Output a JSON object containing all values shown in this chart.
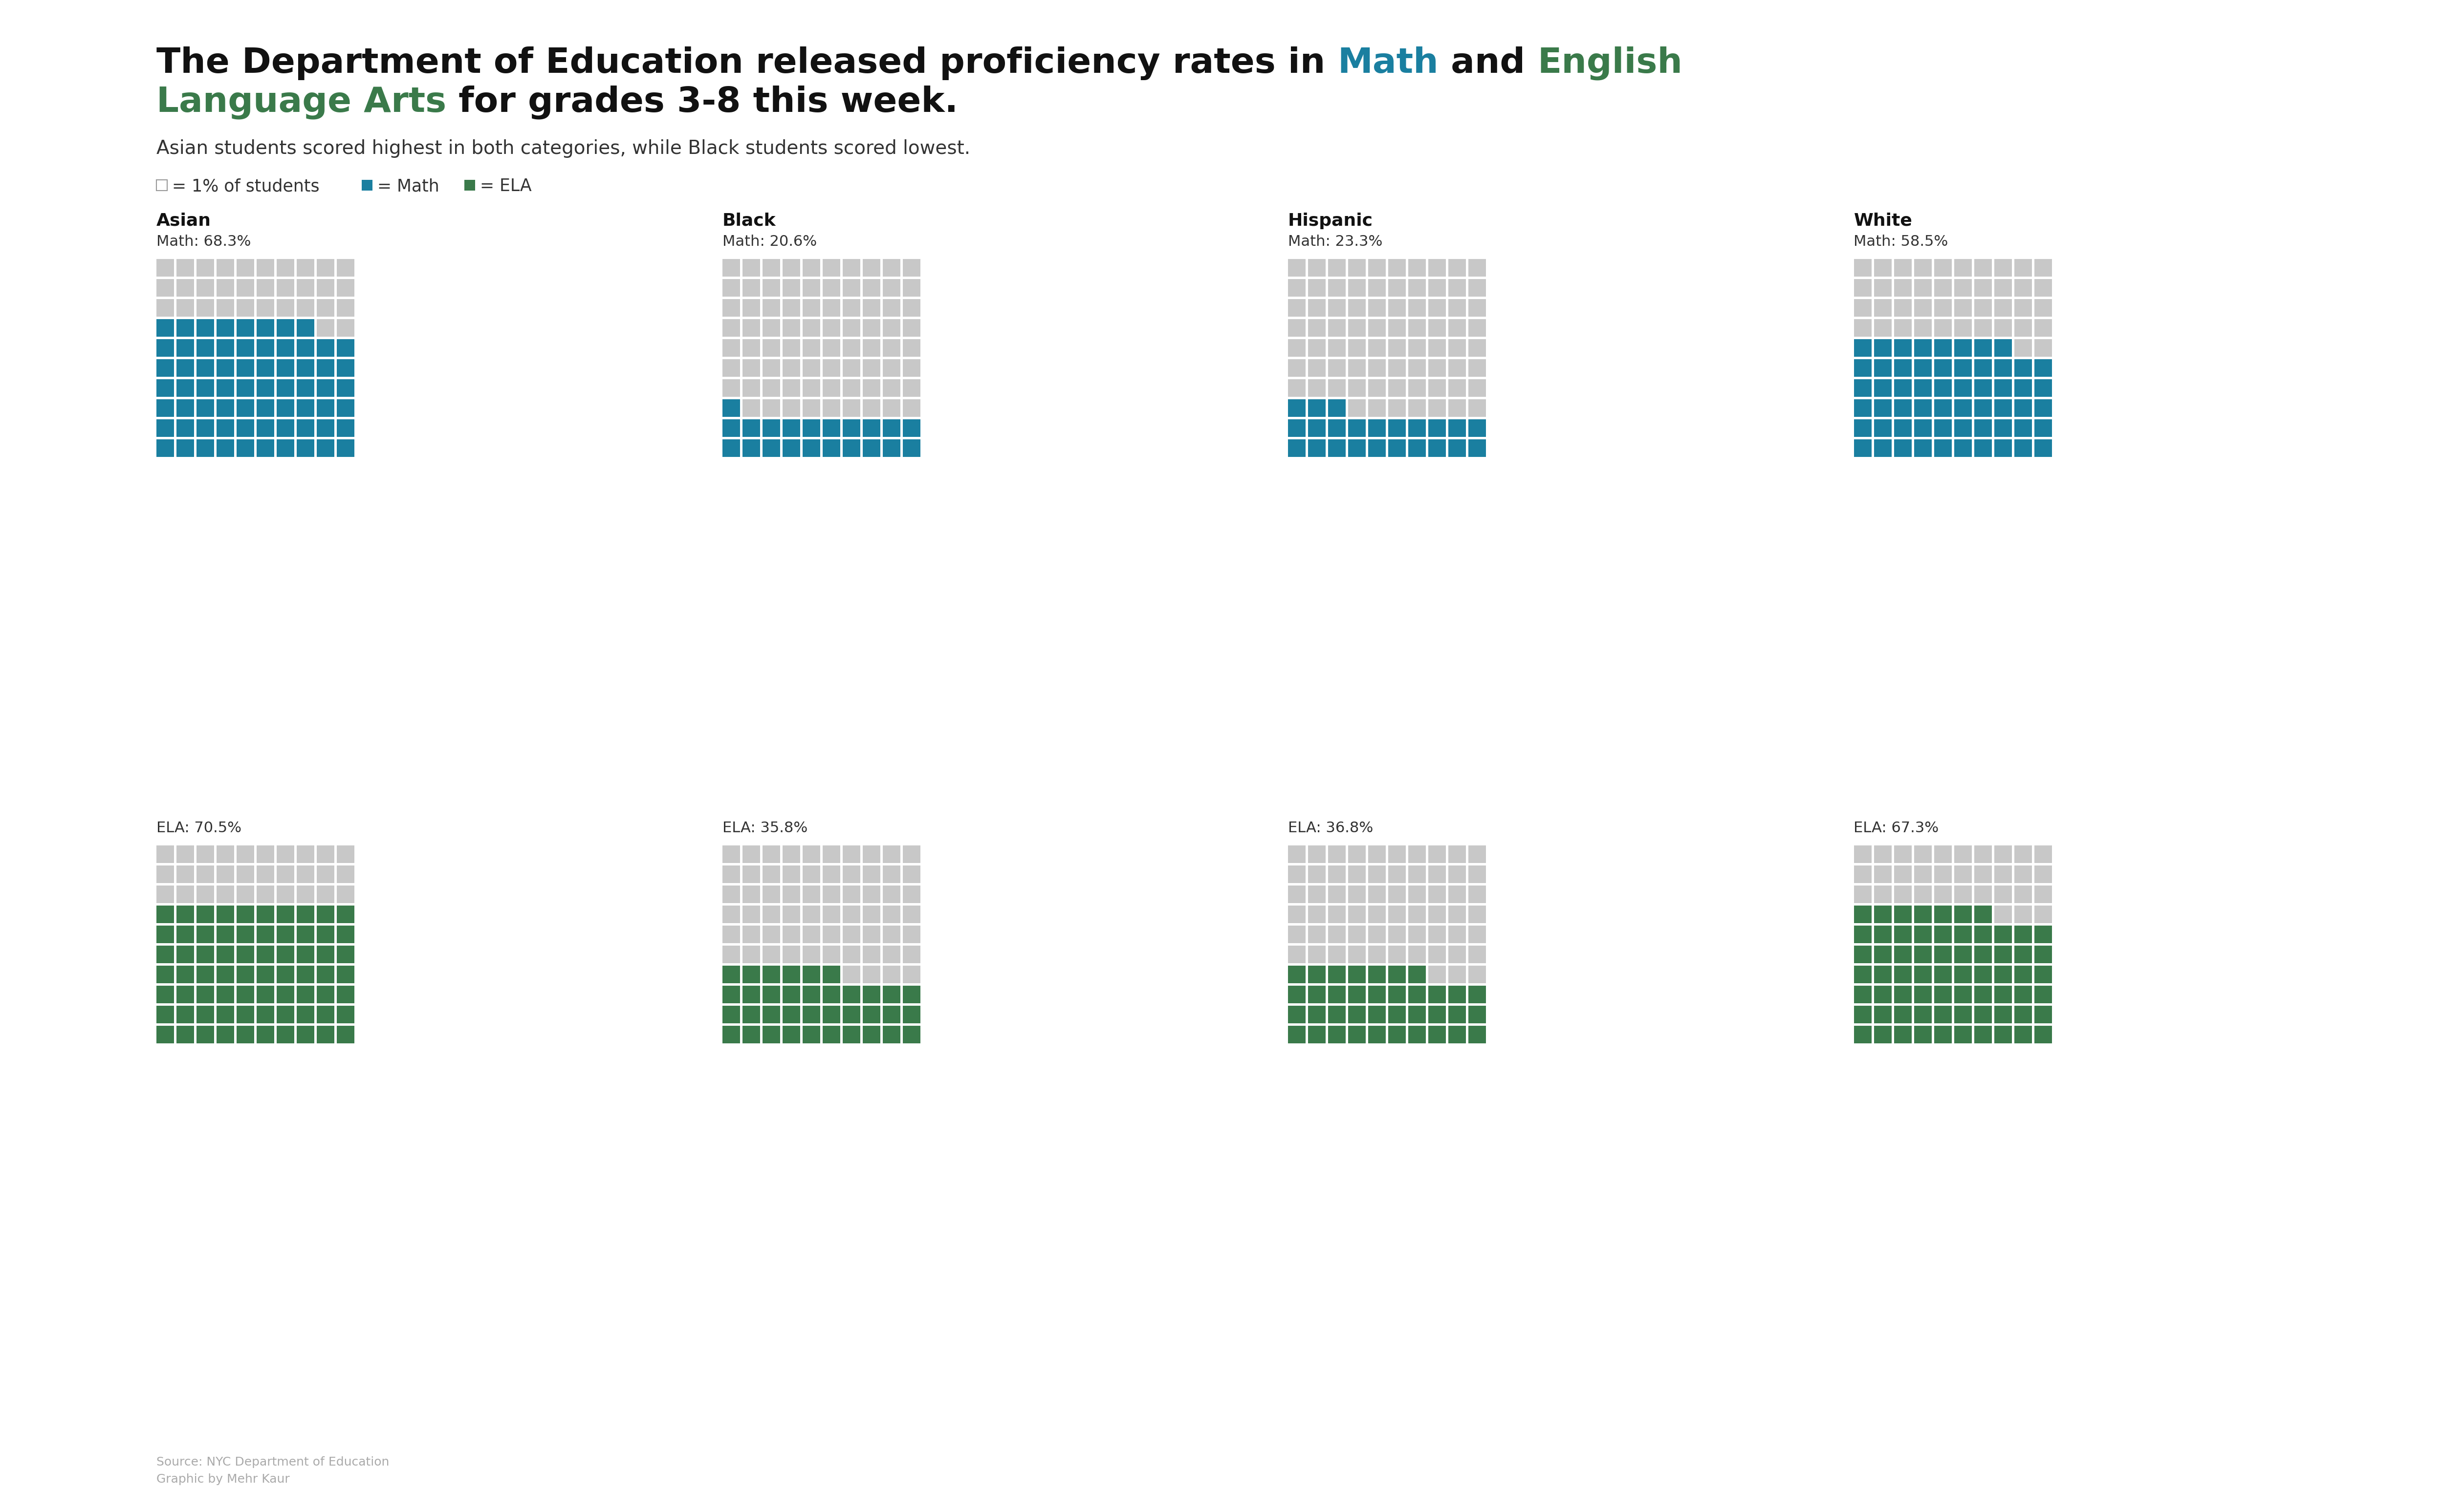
{
  "title_line1_parts": [
    [
      "The Department of Education released proficiency rates in ",
      "#111111"
    ],
    [
      "Math",
      "#1a7fa0"
    ],
    [
      " and ",
      "#111111"
    ],
    [
      "English",
      "#3a7a4a"
    ]
  ],
  "title_line2_parts": [
    [
      "Language Arts",
      "#3a7a4a"
    ],
    [
      " for grades 3-8 this week.",
      "#111111"
    ]
  ],
  "subtitle": "Asian students scored highest in both categories, while Black students scored lowest.",
  "legend_square_label": "= 1% of students",
  "legend_math_label": "= Math",
  "legend_ela_label": "= ELA",
  "color_math": "#1a7fa0",
  "color_ela": "#3a7a4a",
  "color_bg_cell": "#c8c8c8",
  "color_white_bg": "#ffffff",
  "groups": [
    "Asian",
    "Black",
    "Hispanic",
    "White"
  ],
  "math_pcts": [
    68.3,
    20.6,
    23.3,
    58.5
  ],
  "ela_pcts": [
    70.5,
    35.8,
    36.8,
    67.3
  ],
  "rows": 10,
  "cols": 10,
  "source_line1": "Source: NYC Department of Education",
  "source_line2": "Graphic by Mehr Kaur"
}
